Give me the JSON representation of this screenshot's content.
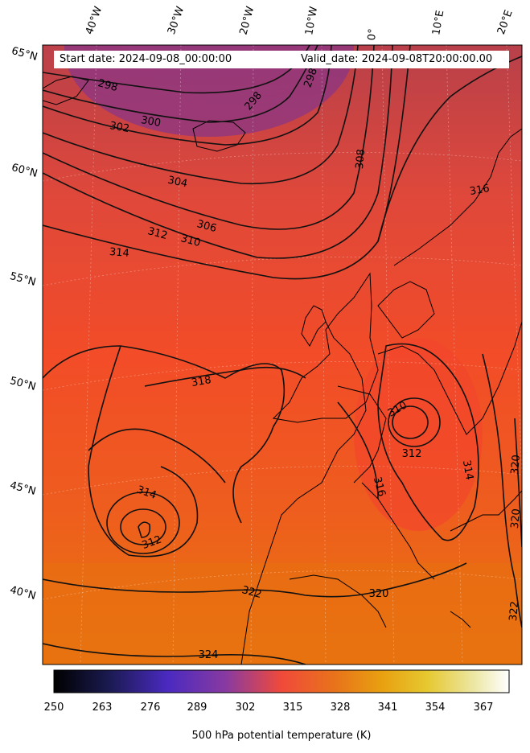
{
  "title": {
    "start_date": "Start date: 2024-09-08_00:00:00",
    "valid_date": "Valid_date: 2024-09-08T20:00:00.00"
  },
  "longitude_labels": [
    "40°W",
    "30°W",
    "20°W",
    "10°W",
    "0°",
    "10°E",
    "20°E"
  ],
  "latitude_labels": [
    "65°N",
    "60°N",
    "55°N",
    "50°N",
    "45°N",
    "40°N"
  ],
  "contour_labels": [
    "298",
    "298",
    "298",
    "300",
    "302",
    "304",
    "306",
    "308",
    "310",
    "312",
    "314",
    "316",
    "318",
    "310",
    "312",
    "314",
    "316",
    "314",
    "312",
    "320",
    "322",
    "320",
    "320",
    "324",
    "322"
  ],
  "colorbar": {
    "ticks": [
      "250",
      "263",
      "276",
      "289",
      "302",
      "315",
      "328",
      "341",
      "354",
      "367"
    ],
    "label": "500 hPa potential temperature (K)",
    "colormap": "CMRmap",
    "range": [
      250,
      372
    ]
  },
  "colors": {
    "background_warm": "#f04a2a",
    "south_orange": "#e8720e",
    "north_purple": "#8a3a8a"
  }
}
